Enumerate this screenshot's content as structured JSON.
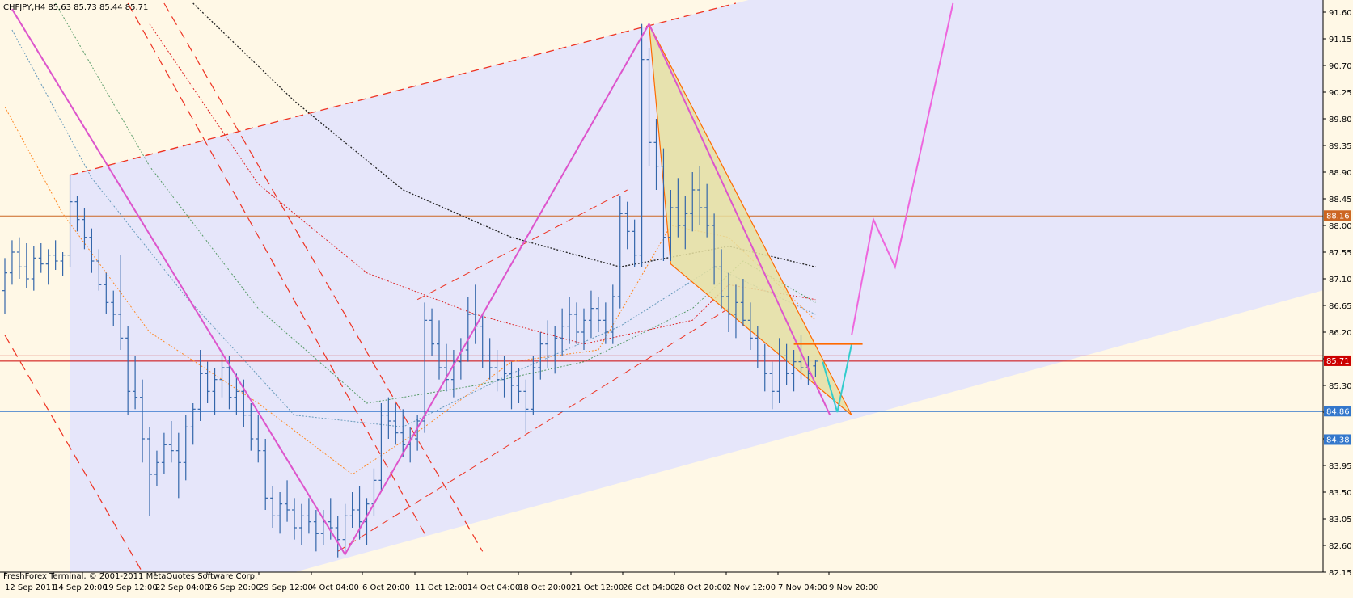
{
  "header": {
    "symbol_line": "CHFJPY,H4  85.63 85.73 85.44 85.71"
  },
  "footer": {
    "copyright": "FreshForex Terminal, © 2001-2011 MetaQuotes Software Corp."
  },
  "colors": {
    "background": "#fff8e6",
    "channel_fill": "#e6e6fa",
    "candle": "#3366aa",
    "pattern_fill": "#e6e0a0",
    "pattern_edge": "#ff6a00",
    "zigzag": "#dd55cc",
    "projection": "#ee66dd",
    "projection_last": "#33cccc",
    "dashed_red": "#ee3322",
    "hline_orange": "#cc6622",
    "hline_red": "#cc0000",
    "hline_blue": "#3377cc",
    "ma_black": "#222222"
  },
  "chart_data": {
    "type": "candlestick",
    "symbol": "CHFJPY",
    "timeframe": "H4",
    "ohlc_current": {
      "open": 85.63,
      "high": 85.73,
      "low": 85.44,
      "close": 85.71
    },
    "ylim": [
      82.15,
      91.75
    ],
    "y_ticks": [
      91.6,
      91.15,
      90.7,
      90.25,
      89.8,
      89.35,
      88.9,
      88.45,
      88.0,
      87.55,
      87.1,
      86.65,
      86.2,
      85.75,
      85.3,
      84.85,
      84.4,
      83.95,
      83.5,
      83.05,
      82.6,
      82.15
    ],
    "y_tick_labels": [
      "91.60",
      "91.15",
      "90.70",
      "90.25",
      "89.80",
      "89.35",
      "88.90",
      "88.45",
      "88.00",
      "87.55",
      "87.10",
      "86.65",
      "86.20",
      "85.75",
      "85.30",
      "84.85",
      "84.40",
      "83.95",
      "83.50",
      "83.05",
      "82.60",
      "82.15"
    ],
    "x_tick_labels": [
      "12 Sep 2011",
      "14 Sep 20:00",
      "19 Sep 12:00",
      "22 Sep 04:00",
      "26 Sep 20:00",
      "29 Sep 12:00",
      "4 Oct 04:00",
      "6 Oct 20:00",
      "11 Oct 12:00",
      "14 Oct 04:00",
      "18 Oct 20:00",
      "21 Oct 12:00",
      "26 Oct 04:00",
      "28 Oct 20:00",
      "2 Nov 12:00",
      "7 Nov 04:00",
      "9 Nov 20:00"
    ],
    "horizontal_levels": [
      {
        "value": 88.16,
        "label": "88.16",
        "color": "#cc6622"
      },
      {
        "value": 85.8,
        "label": "",
        "color": "#cc0000"
      },
      {
        "value": 85.71,
        "label": "85.71",
        "color": "#cc0000"
      },
      {
        "value": 84.86,
        "label": "84.86",
        "color": "#3377cc"
      },
      {
        "value": 84.38,
        "label": "84.38",
        "color": "#3377cc"
      }
    ],
    "zigzag_points": [
      {
        "x": 1,
        "y": 91.65
      },
      {
        "x": 47,
        "y": 82.45
      },
      {
        "x": 89,
        "y": 91.4
      },
      {
        "x": 114,
        "y": 84.8
      }
    ],
    "harmonic_pattern": [
      {
        "x": 89,
        "y": 91.4
      },
      {
        "x": 117,
        "y": 84.8
      },
      {
        "x": 92,
        "y": 87.35
      }
    ],
    "projection_path": [
      {
        "x": 117,
        "y": 86.15
      },
      {
        "x": 120,
        "y": 88.1
      },
      {
        "x": 123,
        "y": 87.3
      },
      {
        "x": 131,
        "y": 91.75
      }
    ],
    "projection_last_leg": [
      {
        "x": 113,
        "y": 85.7
      },
      {
        "x": 115,
        "y": 84.85
      },
      {
        "x": 117,
        "y": 86.0
      }
    ],
    "channel": {
      "upper": [
        {
          "x": 9,
          "y": 88.85
        },
        {
          "x": 101,
          "y": 91.75
        }
      ],
      "lower": [
        {
          "x": 40,
          "y": 82.15
        },
        {
          "x": 173,
          "y": 86.6
        }
      ]
    },
    "inner_channel": {
      "upper": [
        {
          "x": 57,
          "y": 86.75
        },
        {
          "x": 86,
          "y": 88.6
        }
      ],
      "lower": [
        {
          "x": 46,
          "y": 82.5
        },
        {
          "x": 100,
          "y": 86.6
        }
      ]
    },
    "dashed_diagonals": [
      [
        {
          "x": 0,
          "y": 86.15
        },
        {
          "x": 19,
          "y": 82.15
        }
      ],
      [
        {
          "x": 22,
          "y": 91.75
        },
        {
          "x": 66,
          "y": 82.5
        }
      ],
      [
        {
          "x": 17,
          "y": 91.75
        },
        {
          "x": 58,
          "y": 82.8
        }
      ]
    ],
    "moving_averages": [
      {
        "name": "MA black",
        "values": [
          {
            "x": 26,
            "y": 91.75
          },
          {
            "x": 40,
            "y": 90.1
          },
          {
            "x": 55,
            "y": 88.6
          },
          {
            "x": 70,
            "y": 87.8
          },
          {
            "x": 85,
            "y": 87.3
          },
          {
            "x": 100,
            "y": 87.65
          },
          {
            "x": 112,
            "y": 87.3
          }
        ]
      },
      {
        "name": "MA red",
        "values": [
          {
            "x": 20,
            "y": 91.4
          },
          {
            "x": 35,
            "y": 88.7
          },
          {
            "x": 50,
            "y": 87.2
          },
          {
            "x": 65,
            "y": 86.5
          },
          {
            "x": 80,
            "y": 86.0
          },
          {
            "x": 95,
            "y": 86.4
          },
          {
            "x": 100,
            "y": 87.0
          },
          {
            "x": 112,
            "y": 86.75
          }
        ]
      },
      {
        "name": "MA green",
        "values": [
          {
            "x": 7,
            "y": 91.75
          },
          {
            "x": 20,
            "y": 89.0
          },
          {
            "x": 35,
            "y": 86.6
          },
          {
            "x": 50,
            "y": 85.0
          },
          {
            "x": 65,
            "y": 85.3
          },
          {
            "x": 80,
            "y": 85.7
          },
          {
            "x": 95,
            "y": 86.6
          },
          {
            "x": 102,
            "y": 87.4
          },
          {
            "x": 112,
            "y": 86.7
          }
        ]
      },
      {
        "name": "MA blue",
        "values": [
          {
            "x": 1,
            "y": 91.3
          },
          {
            "x": 12,
            "y": 88.8
          },
          {
            "x": 25,
            "y": 86.8
          },
          {
            "x": 40,
            "y": 84.8
          },
          {
            "x": 55,
            "y": 84.6
          },
          {
            "x": 70,
            "y": 85.5
          },
          {
            "x": 85,
            "y": 86.3
          },
          {
            "x": 98,
            "y": 87.3
          },
          {
            "x": 112,
            "y": 86.5
          }
        ]
      },
      {
        "name": "MA orange",
        "values": [
          {
            "x": 0,
            "y": 90.0
          },
          {
            "x": 8,
            "y": 88.2
          },
          {
            "x": 20,
            "y": 86.2
          },
          {
            "x": 35,
            "y": 85.0
          },
          {
            "x": 48,
            "y": 83.8
          },
          {
            "x": 58,
            "y": 84.6
          },
          {
            "x": 70,
            "y": 85.7
          },
          {
            "x": 82,
            "y": 85.9
          },
          {
            "x": 92,
            "y": 88.0
          },
          {
            "x": 100,
            "y": 87.8
          },
          {
            "x": 112,
            "y": 86.4
          }
        ]
      }
    ],
    "candles": [
      {
        "o": 86.9,
        "h": 87.45,
        "l": 86.5,
        "c": 87.2
      },
      {
        "o": 87.2,
        "h": 87.75,
        "l": 87.0,
        "c": 87.55
      },
      {
        "o": 87.55,
        "h": 87.8,
        "l": 87.1,
        "c": 87.3
      },
      {
        "o": 87.3,
        "h": 87.7,
        "l": 86.95,
        "c": 87.1
      },
      {
        "o": 87.1,
        "h": 87.65,
        "l": 86.9,
        "c": 87.45
      },
      {
        "o": 87.45,
        "h": 87.7,
        "l": 87.2,
        "c": 87.35
      },
      {
        "o": 87.35,
        "h": 87.6,
        "l": 87.0,
        "c": 87.5
      },
      {
        "o": 87.5,
        "h": 87.75,
        "l": 87.25,
        "c": 87.4
      },
      {
        "o": 87.4,
        "h": 87.55,
        "l": 87.15,
        "c": 87.5
      },
      {
        "o": 87.5,
        "h": 88.85,
        "l": 87.3,
        "c": 88.4
      },
      {
        "o": 88.4,
        "h": 88.5,
        "l": 87.9,
        "c": 88.1
      },
      {
        "o": 88.1,
        "h": 88.3,
        "l": 87.6,
        "c": 87.8
      },
      {
        "o": 87.8,
        "h": 87.95,
        "l": 87.2,
        "c": 87.4
      },
      {
        "o": 87.4,
        "h": 87.6,
        "l": 86.9,
        "c": 87.0
      },
      {
        "o": 87.0,
        "h": 87.2,
        "l": 86.5,
        "c": 86.7
      },
      {
        "o": 86.7,
        "h": 86.9,
        "l": 86.3,
        "c": 86.5
      },
      {
        "o": 86.5,
        "h": 87.5,
        "l": 85.9,
        "c": 86.1
      },
      {
        "o": 86.1,
        "h": 86.3,
        "l": 84.8,
        "c": 85.2
      },
      {
        "o": 85.2,
        "h": 85.8,
        "l": 84.9,
        "c": 85.1
      },
      {
        "o": 85.1,
        "h": 85.4,
        "l": 84.0,
        "c": 84.4
      },
      {
        "o": 84.4,
        "h": 84.6,
        "l": 83.1,
        "c": 83.8
      },
      {
        "o": 83.8,
        "h": 84.2,
        "l": 83.6,
        "c": 84.0
      },
      {
        "o": 84.0,
        "h": 84.5,
        "l": 83.8,
        "c": 84.3
      },
      {
        "o": 84.3,
        "h": 84.7,
        "l": 84.0,
        "c": 84.2
      },
      {
        "o": 84.2,
        "h": 84.5,
        "l": 83.4,
        "c": 84.0
      },
      {
        "o": 84.0,
        "h": 84.8,
        "l": 83.7,
        "c": 84.6
      },
      {
        "o": 84.6,
        "h": 85.0,
        "l": 84.3,
        "c": 84.9
      },
      {
        "o": 84.9,
        "h": 85.9,
        "l": 84.7,
        "c": 85.5
      },
      {
        "o": 85.5,
        "h": 85.7,
        "l": 85.0,
        "c": 85.2
      },
      {
        "o": 85.2,
        "h": 85.6,
        "l": 84.8,
        "c": 85.4
      },
      {
        "o": 85.4,
        "h": 85.9,
        "l": 85.1,
        "c": 85.6
      },
      {
        "o": 85.6,
        "h": 85.8,
        "l": 84.9,
        "c": 85.1
      },
      {
        "o": 85.1,
        "h": 85.5,
        "l": 84.8,
        "c": 85.2
      },
      {
        "o": 85.2,
        "h": 85.4,
        "l": 84.6,
        "c": 84.8
      },
      {
        "o": 84.8,
        "h": 85.0,
        "l": 84.2,
        "c": 84.4
      },
      {
        "o": 84.4,
        "h": 84.8,
        "l": 84.0,
        "c": 84.2
      },
      {
        "o": 84.2,
        "h": 84.4,
        "l": 83.2,
        "c": 83.4
      },
      {
        "o": 83.4,
        "h": 83.6,
        "l": 82.9,
        "c": 83.1
      },
      {
        "o": 83.1,
        "h": 83.5,
        "l": 82.8,
        "c": 83.3
      },
      {
        "o": 83.3,
        "h": 83.7,
        "l": 83.0,
        "c": 83.2
      },
      {
        "o": 83.2,
        "h": 83.4,
        "l": 82.7,
        "c": 82.9
      },
      {
        "o": 82.9,
        "h": 83.3,
        "l": 82.6,
        "c": 83.1
      },
      {
        "o": 83.1,
        "h": 83.4,
        "l": 82.8,
        "c": 83.0
      },
      {
        "o": 83.0,
        "h": 83.2,
        "l": 82.5,
        "c": 82.8
      },
      {
        "o": 82.8,
        "h": 83.2,
        "l": 82.6,
        "c": 83.0
      },
      {
        "o": 83.0,
        "h": 83.4,
        "l": 82.7,
        "c": 82.9
      },
      {
        "o": 82.9,
        "h": 83.1,
        "l": 82.4,
        "c": 82.7
      },
      {
        "o": 82.7,
        "h": 83.3,
        "l": 82.5,
        "c": 83.1
      },
      {
        "o": 83.1,
        "h": 83.5,
        "l": 82.9,
        "c": 83.2
      },
      {
        "o": 83.2,
        "h": 83.6,
        "l": 82.7,
        "c": 83.0
      },
      {
        "o": 83.0,
        "h": 83.4,
        "l": 82.6,
        "c": 83.3
      },
      {
        "o": 83.3,
        "h": 83.9,
        "l": 83.1,
        "c": 83.7
      },
      {
        "o": 83.7,
        "h": 85.0,
        "l": 83.5,
        "c": 84.8
      },
      {
        "o": 84.8,
        "h": 85.1,
        "l": 84.4,
        "c": 84.7
      },
      {
        "o": 84.7,
        "h": 85.0,
        "l": 84.3,
        "c": 84.5
      },
      {
        "o": 84.5,
        "h": 84.9,
        "l": 84.1,
        "c": 84.3
      },
      {
        "o": 84.3,
        "h": 84.6,
        "l": 84.0,
        "c": 84.4
      },
      {
        "o": 84.4,
        "h": 84.8,
        "l": 84.2,
        "c": 84.7
      },
      {
        "o": 84.7,
        "h": 86.7,
        "l": 84.5,
        "c": 86.4
      },
      {
        "o": 86.4,
        "h": 86.6,
        "l": 85.8,
        "c": 86.0
      },
      {
        "o": 86.0,
        "h": 86.4,
        "l": 85.4,
        "c": 85.6
      },
      {
        "o": 85.6,
        "h": 86.0,
        "l": 85.2,
        "c": 85.4
      },
      {
        "o": 85.4,
        "h": 85.9,
        "l": 85.1,
        "c": 85.7
      },
      {
        "o": 85.7,
        "h": 86.1,
        "l": 85.4,
        "c": 85.9
      },
      {
        "o": 85.9,
        "h": 86.8,
        "l": 85.7,
        "c": 86.5
      },
      {
        "o": 86.5,
        "h": 87.0,
        "l": 86.0,
        "c": 86.3
      },
      {
        "o": 86.3,
        "h": 86.5,
        "l": 85.6,
        "c": 85.8
      },
      {
        "o": 85.8,
        "h": 86.1,
        "l": 85.4,
        "c": 85.6
      },
      {
        "o": 85.6,
        "h": 85.9,
        "l": 85.2,
        "c": 85.4
      },
      {
        "o": 85.4,
        "h": 85.8,
        "l": 85.1,
        "c": 85.5
      },
      {
        "o": 85.5,
        "h": 85.7,
        "l": 84.9,
        "c": 85.3
      },
      {
        "o": 85.3,
        "h": 85.6,
        "l": 85.0,
        "c": 85.2
      },
      {
        "o": 85.2,
        "h": 85.4,
        "l": 84.5,
        "c": 84.9
      },
      {
        "o": 84.9,
        "h": 85.8,
        "l": 84.8,
        "c": 85.6
      },
      {
        "o": 85.6,
        "h": 86.2,
        "l": 85.4,
        "c": 86.0
      },
      {
        "o": 86.0,
        "h": 86.4,
        "l": 85.6,
        "c": 85.8
      },
      {
        "o": 85.8,
        "h": 86.3,
        "l": 85.5,
        "c": 86.1
      },
      {
        "o": 86.1,
        "h": 86.6,
        "l": 85.8,
        "c": 86.3
      },
      {
        "o": 86.3,
        "h": 86.8,
        "l": 86.0,
        "c": 86.5
      },
      {
        "o": 86.5,
        "h": 86.7,
        "l": 86.0,
        "c": 86.2
      },
      {
        "o": 86.2,
        "h": 86.6,
        "l": 85.9,
        "c": 86.4
      },
      {
        "o": 86.4,
        "h": 86.9,
        "l": 86.1,
        "c": 86.6
      },
      {
        "o": 86.6,
        "h": 86.8,
        "l": 86.2,
        "c": 86.4
      },
      {
        "o": 86.4,
        "h": 86.7,
        "l": 86.0,
        "c": 86.2
      },
      {
        "o": 86.2,
        "h": 87.0,
        "l": 86.0,
        "c": 86.8
      },
      {
        "o": 86.8,
        "h": 88.5,
        "l": 86.6,
        "c": 88.2
      },
      {
        "o": 88.2,
        "h": 88.4,
        "l": 87.6,
        "c": 87.9
      },
      {
        "o": 87.9,
        "h": 88.1,
        "l": 87.3,
        "c": 87.5
      },
      {
        "o": 87.5,
        "h": 91.4,
        "l": 87.3,
        "c": 90.8
      },
      {
        "o": 90.8,
        "h": 91.0,
        "l": 89.0,
        "c": 89.4
      },
      {
        "o": 89.4,
        "h": 89.8,
        "l": 88.6,
        "c": 89.0
      },
      {
        "o": 89.0,
        "h": 89.3,
        "l": 87.4,
        "c": 87.8
      },
      {
        "o": 87.8,
        "h": 88.6,
        "l": 87.4,
        "c": 88.3
      },
      {
        "o": 88.3,
        "h": 88.8,
        "l": 87.8,
        "c": 88.0
      },
      {
        "o": 88.0,
        "h": 88.5,
        "l": 87.6,
        "c": 88.2
      },
      {
        "o": 88.2,
        "h": 88.9,
        "l": 87.9,
        "c": 88.6
      },
      {
        "o": 88.6,
        "h": 89.0,
        "l": 88.0,
        "c": 88.3
      },
      {
        "o": 88.3,
        "h": 88.7,
        "l": 87.8,
        "c": 88.0
      },
      {
        "o": 88.0,
        "h": 88.2,
        "l": 87.0,
        "c": 87.3
      },
      {
        "o": 87.3,
        "h": 87.6,
        "l": 86.6,
        "c": 86.8
      },
      {
        "o": 86.8,
        "h": 87.2,
        "l": 86.2,
        "c": 86.5
      },
      {
        "o": 86.5,
        "h": 87.0,
        "l": 86.1,
        "c": 86.7
      },
      {
        "o": 86.7,
        "h": 87.1,
        "l": 86.3,
        "c": 86.4
      },
      {
        "o": 86.4,
        "h": 86.7,
        "l": 85.9,
        "c": 86.1
      },
      {
        "o": 86.1,
        "h": 86.3,
        "l": 85.6,
        "c": 85.8
      },
      {
        "o": 85.8,
        "h": 86.0,
        "l": 85.2,
        "c": 85.5
      },
      {
        "o": 85.5,
        "h": 85.7,
        "l": 84.9,
        "c": 85.2
      },
      {
        "o": 85.2,
        "h": 86.1,
        "l": 85.0,
        "c": 85.8
      },
      {
        "o": 85.8,
        "h": 86.0,
        "l": 85.3,
        "c": 85.5
      },
      {
        "o": 85.5,
        "h": 85.9,
        "l": 85.2,
        "c": 85.7
      },
      {
        "o": 85.7,
        "h": 86.15,
        "l": 85.4,
        "c": 85.6
      },
      {
        "o": 85.6,
        "h": 85.8,
        "l": 85.3,
        "c": 85.5
      },
      {
        "o": 85.63,
        "h": 85.73,
        "l": 85.44,
        "c": 85.71
      }
    ]
  }
}
